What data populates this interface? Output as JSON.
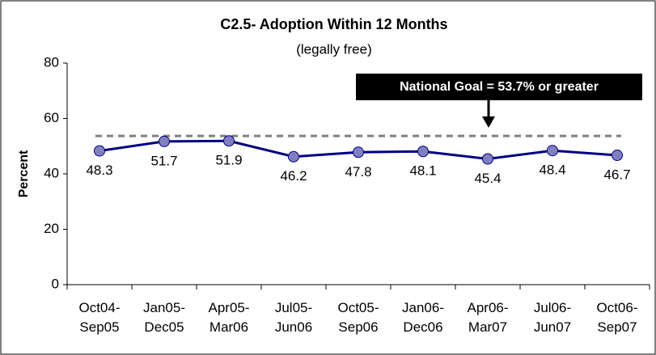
{
  "chart_data": {
    "type": "line",
    "title": "C2.5- Adoption Within 12 Months",
    "subtitle": "(legally free)",
    "y_label": "Percent",
    "categories": [
      "Oct04-Sep05",
      "Jan05-Dec05",
      "Apr05-Mar06",
      "Jul05-Jun06",
      "Oct05-Sep06",
      "Jan06-Dec06",
      "Apr06-Mar07",
      "Jul06-Jun07",
      "Oct06-Sep07"
    ],
    "values": [
      48.3,
      51.7,
      51.9,
      46.2,
      47.8,
      48.1,
      45.4,
      48.4,
      46.7
    ],
    "color": "#000080",
    "marker_color": "#8080c0",
    "ylim": [
      0,
      80
    ],
    "yticks": [
      0,
      20,
      40,
      60,
      80
    ],
    "grid": false,
    "goal": {
      "value": 53.7,
      "label": "National Goal = 53.7% or greater",
      "color": "#808080"
    }
  }
}
